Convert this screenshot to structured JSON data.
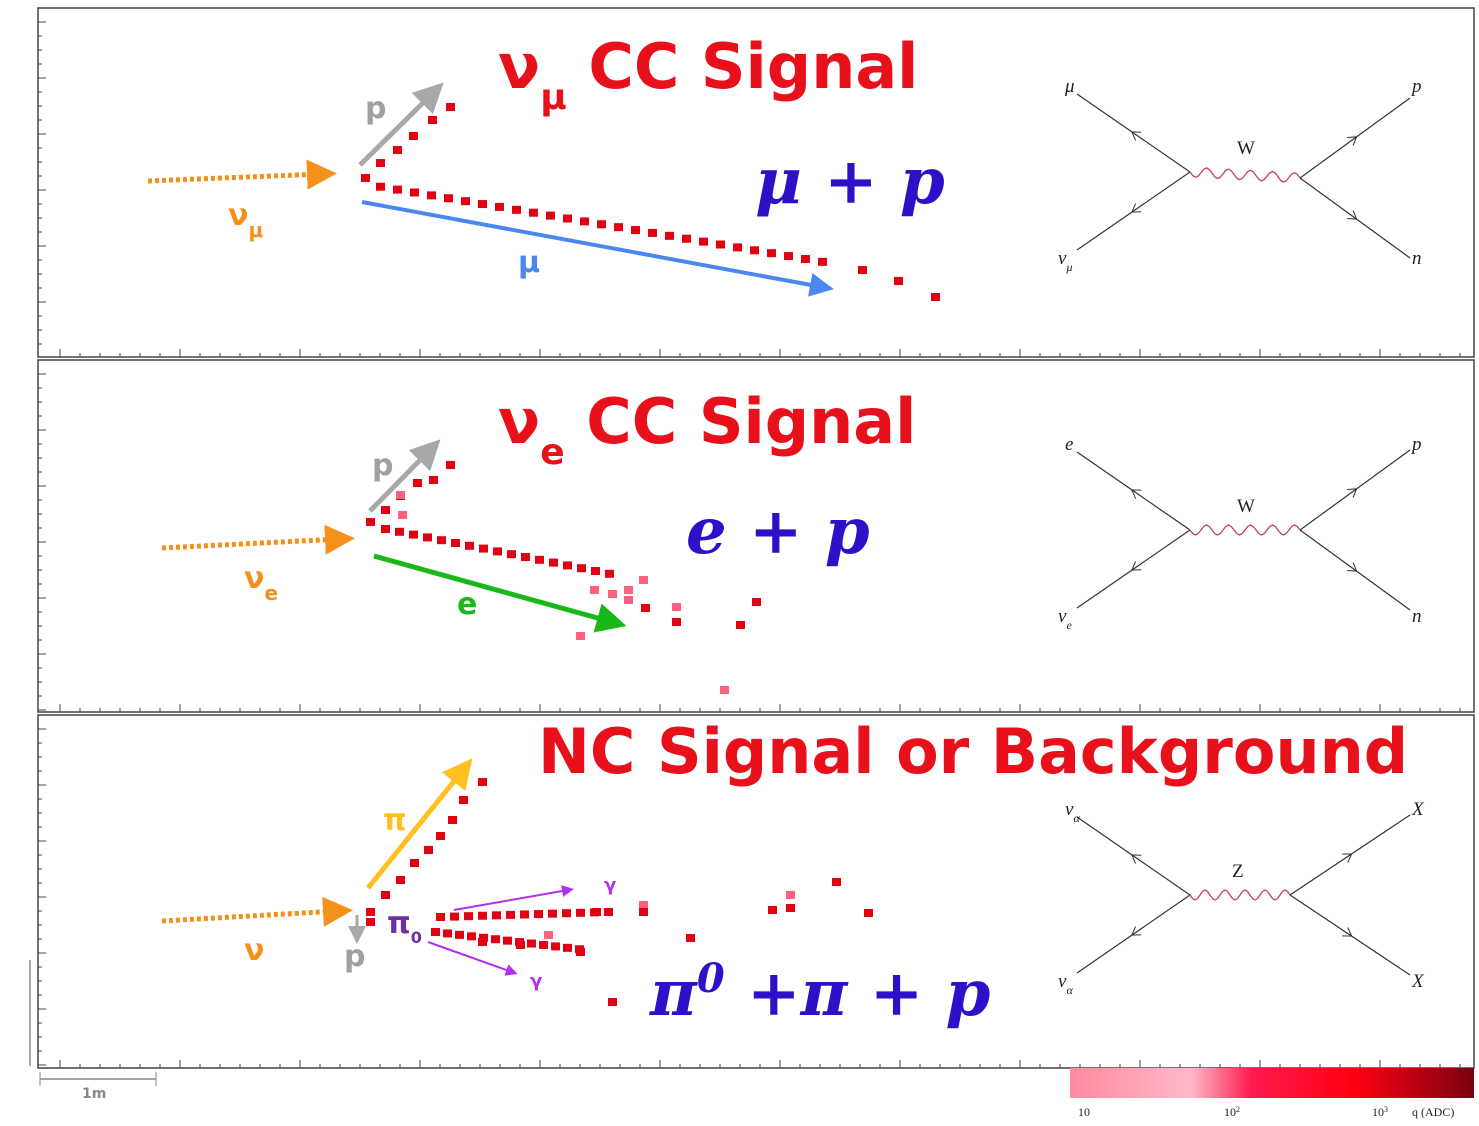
{
  "panels": [
    {
      "title": {
        "nu": "ν",
        "sub": "μ",
        "rest": " CC Signal"
      },
      "labels": {
        "proton": "p",
        "neutrino": {
          "nu": "ν",
          "sub": "μ"
        },
        "lepton": "μ"
      },
      "reaction": "μ + p",
      "diagram": {
        "top_left": "μ",
        "top_right": "p",
        "boson": "W",
        "bottom_left": {
          "nu": "ν",
          "sub": "μ"
        },
        "bottom_right": "n"
      }
    },
    {
      "title": {
        "nu": "ν",
        "sub": "e",
        "rest": " CC Signal"
      },
      "labels": {
        "proton": "p",
        "neutrino": {
          "nu": "ν",
          "sub": "e"
        },
        "lepton": "e"
      },
      "reaction": "e + p",
      "diagram": {
        "top_left": "e",
        "top_right": "p",
        "boson": "W",
        "bottom_left": {
          "nu": "ν",
          "sub": "e"
        },
        "bottom_right": "n"
      }
    },
    {
      "title": "NC Signal or Background",
      "labels": {
        "pion": "π",
        "neutrino": "ν",
        "proton": "p",
        "pi0": {
          "pi": "π",
          "sup": "0"
        },
        "gamma_top": "γ",
        "gamma_bottom": "γ"
      },
      "reaction": {
        "pi": "π",
        "sup": "0",
        "rest": " +π + p"
      },
      "diagram": {
        "top_left": {
          "nu": "ν",
          "sub": "α"
        },
        "top_right": "X",
        "boson": "Z",
        "bottom_left": {
          "nu": "ν",
          "sub": "α"
        },
        "bottom_right": "X"
      }
    }
  ],
  "scale": "1m",
  "colorbar": {
    "ticks": [
      {
        "base": "10"
      },
      {
        "base": "10",
        "sup": "2"
      },
      {
        "base": "10",
        "sup": "3"
      }
    ],
    "unit": "q (ADC)"
  }
}
